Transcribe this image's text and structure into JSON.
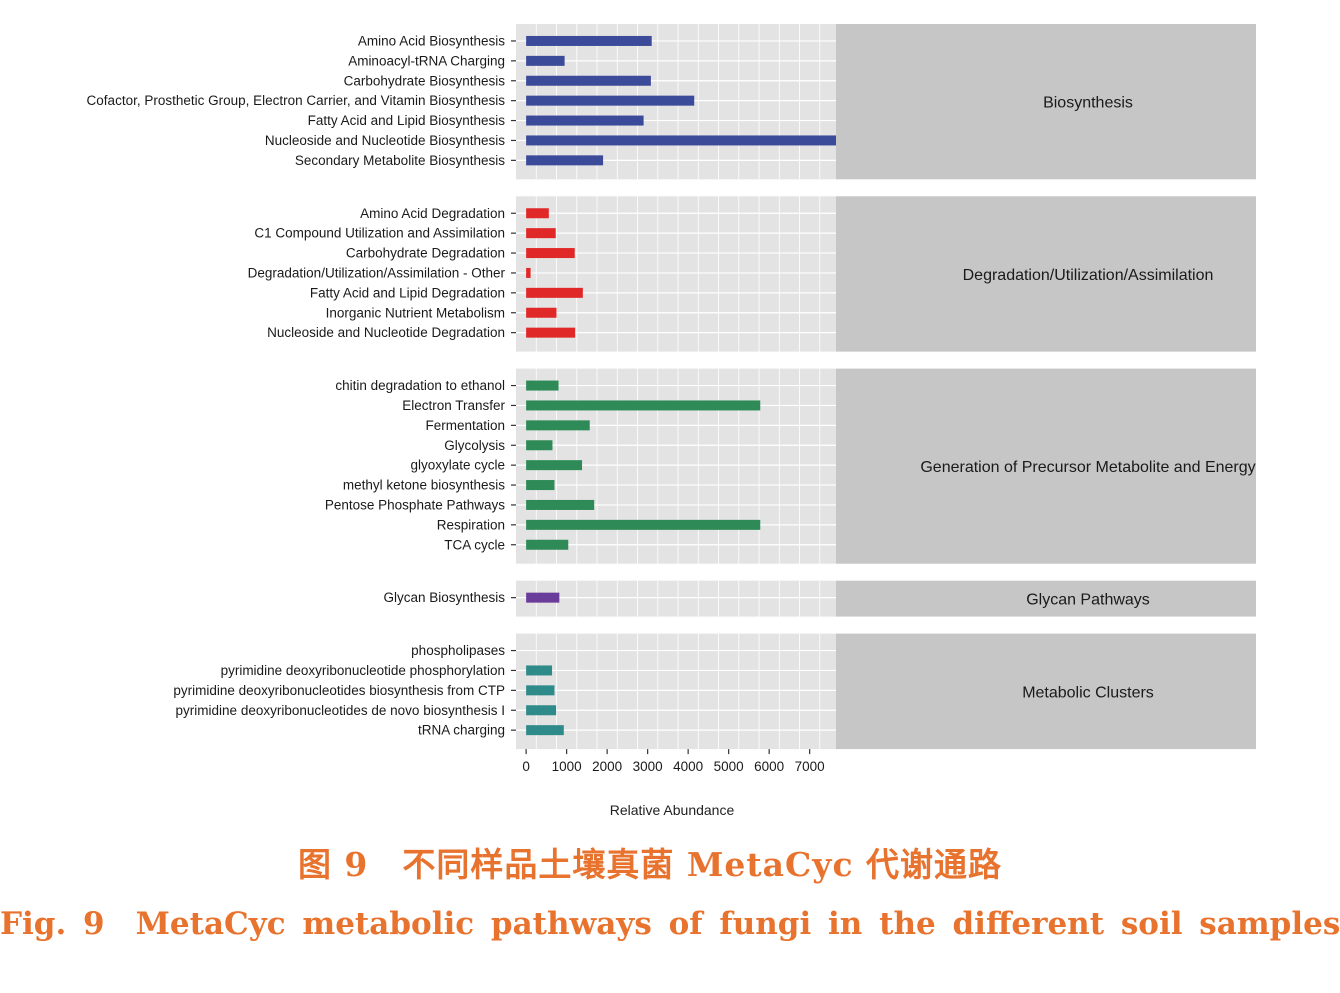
{
  "chart_data": {
    "type": "bar",
    "orientation": "horizontal",
    "facets": [
      {
        "strip_label": "Biosynthesis",
        "color": "#3c4a9a",
        "categories": [
          "Amino Acid Biosynthesis",
          "Aminoacyl-tRNA Charging",
          "Carbohydrate Biosynthesis",
          "Cofactor, Prosthetic Group, Electron Carrier, and Vitamin Biosynthesis",
          "Fatty Acid and Lipid Biosynthesis",
          "Nucleoside and Nucleotide Biosynthesis",
          "Secondary Metabolite Biosynthesis"
        ],
        "values": [
          3100,
          950,
          3080,
          4150,
          2900,
          7650,
          1900
        ]
      },
      {
        "strip_label": "Degradation/Utilization/Assimilation",
        "color": "#e02828",
        "categories": [
          "Amino Acid Degradation",
          "C1 Compound Utilization and Assimilation",
          "Carbohydrate Degradation",
          "Degradation/Utilization/Assimilation - Other",
          "Fatty Acid and Lipid Degradation",
          "Inorganic Nutrient Metabolism",
          "Nucleoside and Nucleotide Degradation"
        ],
        "values": [
          560,
          730,
          1200,
          110,
          1400,
          750,
          1210
        ]
      },
      {
        "strip_label": "Generation of Precursor Metabolite and Energy",
        "color": "#2e8a56",
        "categories": [
          "chitin degradation to ethanol",
          "Electron Transfer",
          "Fermentation",
          "Glycolysis",
          "glyoxylate cycle",
          "methyl ketone biosynthesis",
          "Pentose Phosphate Pathways",
          "Respiration",
          "TCA cycle"
        ],
        "values": [
          800,
          5780,
          1570,
          650,
          1380,
          700,
          1680,
          5780,
          1040
        ]
      },
      {
        "strip_label": "Glycan Pathways",
        "color": "#6a3d9a",
        "categories": [
          "Glycan Biosynthesis"
        ],
        "values": [
          820
        ]
      },
      {
        "strip_label": "Metabolic Clusters",
        "color": "#2f8a8a",
        "categories": [
          "phospholipases",
          "pyrimidine deoxyribonucleotide phosphorylation",
          "pyrimidine deoxyribonucleotides biosynthesis from CTP",
          "pyrimidine deoxyribonucleotides de novo biosynthesis I",
          "tRNA charging"
        ],
        "values": [
          0,
          640,
          700,
          740,
          930
        ]
      }
    ],
    "xlabel": "Relative Abundance",
    "xticks": [
      0,
      1000,
      2000,
      3000,
      4000,
      5000,
      6000,
      7000
    ],
    "xlim": [
      -250,
      7650
    ],
    "grid": true,
    "legend": "none"
  },
  "caption": {
    "cn": "图 9　不同样品土壤真菌 MetaCyc 代谢通路",
    "en": "Fig. 9　MetaCyc metabolic pathways of fungi in the different soil samples"
  }
}
